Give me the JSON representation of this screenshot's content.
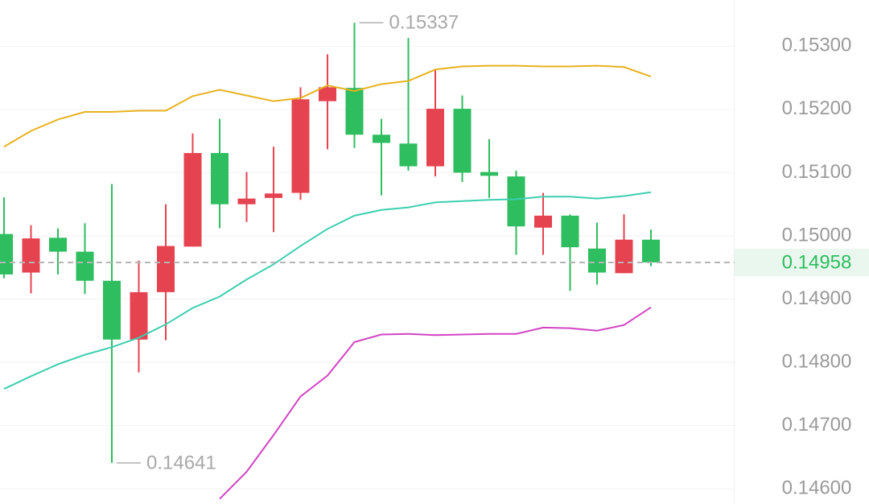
{
  "chart_data": {
    "type": "candlestick",
    "categories": [
      null,
      null,
      null,
      null,
      null,
      null,
      null,
      null,
      null,
      null,
      null,
      null,
      null,
      null,
      null,
      null,
      null,
      null,
      null,
      null,
      null,
      null,
      null,
      null,
      null
    ],
    "open": [
      0.15003,
      0.14942,
      0.14997,
      0.14975,
      0.14929,
      0.14836,
      0.14911,
      0.14983,
      0.15131,
      0.1505,
      0.1506,
      0.15068,
      0.15213,
      0.15234,
      0.1516,
      0.15146,
      0.1511,
      0.15201,
      0.15101,
      0.15094,
      0.15013,
      0.15032,
      0.1498,
      0.14941,
      0.14994
    ],
    "high": [
      0.15061,
      0.15017,
      0.15012,
      0.1502,
      0.15082,
      0.14961,
      0.1505,
      0.15162,
      0.15185,
      0.15101,
      0.15141,
      0.15235,
      0.15287,
      0.15337,
      0.15185,
      0.15313,
      0.15262,
      0.15222,
      0.15153,
      0.15103,
      0.15068,
      0.15034,
      0.15021,
      0.15034,
      0.1501
    ],
    "low": [
      0.14933,
      0.14909,
      0.14939,
      0.14908,
      0.14641,
      0.14784,
      0.14835,
      0.14983,
      0.15012,
      0.15022,
      0.15006,
      0.15057,
      0.15137,
      0.15139,
      0.15064,
      0.15103,
      0.15094,
      0.15085,
      0.1506,
      0.1497,
      0.1497,
      0.14913,
      0.14923,
      0.14941,
      0.14952
    ],
    "close": [
      0.14939,
      0.14996,
      0.14975,
      0.14929,
      0.14836,
      0.14911,
      0.14984,
      0.15131,
      0.1505,
      0.15059,
      0.15067,
      0.15216,
      0.15235,
      0.1516,
      0.15147,
      0.1511,
      0.15201,
      0.151,
      0.15095,
      0.15015,
      0.15032,
      0.14982,
      0.14942,
      0.14994,
      0.14958
    ],
    "up_color": "#e5434f",
    "down_color": "#2ebd5f",
    "series": [
      {
        "color": "#e8b21e",
        "values": [
          0.15141,
          0.15166,
          0.15184,
          0.15196,
          0.15196,
          0.15198,
          0.15198,
          0.15221,
          0.15231,
          0.15222,
          0.15213,
          0.15218,
          0.15238,
          0.15229,
          0.1524,
          0.15245,
          0.15263,
          0.15268,
          0.15269,
          0.15269,
          0.15268,
          0.15268,
          0.15269,
          0.15267,
          0.15252
        ]
      },
      {
        "color": "#3ccfb0",
        "values": [
          0.14758,
          0.14778,
          0.14797,
          0.14812,
          0.14824,
          0.14839,
          0.1486,
          0.14886,
          0.14904,
          0.14931,
          0.14955,
          0.14984,
          0.15011,
          0.15032,
          0.15041,
          0.15045,
          0.15053,
          0.15055,
          0.15057,
          0.15058,
          0.15062,
          0.15062,
          0.15059,
          0.15063,
          0.15069
        ]
      },
      {
        "color": "#d244c4",
        "values": [
          null,
          null,
          null,
          null,
          null,
          null,
          null,
          null,
          0.14584,
          0.14627,
          0.14685,
          0.14746,
          0.14779,
          0.14832,
          0.14844,
          0.14845,
          0.14843,
          0.14844,
          0.14845,
          0.14845,
          0.14855,
          0.14854,
          0.1485,
          0.14859,
          0.14887
        ]
      }
    ],
    "ylim": [
      0.14576,
      0.15373
    ],
    "yticks": [
      {
        "value": 0.153,
        "label": "0.15300"
      },
      {
        "value": 0.152,
        "label": "0.15200"
      },
      {
        "value": 0.151,
        "label": "0.15100"
      },
      {
        "value": 0.15,
        "label": "0.15000"
      },
      {
        "value": 0.149,
        "label": "0.14900"
      },
      {
        "value": 0.148,
        "label": "0.14800"
      },
      {
        "value": 0.147,
        "label": "0.14700"
      },
      {
        "value": 0.146,
        "label": "0.14600"
      }
    ],
    "grid": true,
    "max_label": {
      "value": 0.15337,
      "label": "0.15337"
    },
    "min_label": {
      "value": 0.14641,
      "label": "0.14641"
    },
    "last_price": {
      "value": 0.14958,
      "label": "0.14958"
    }
  }
}
